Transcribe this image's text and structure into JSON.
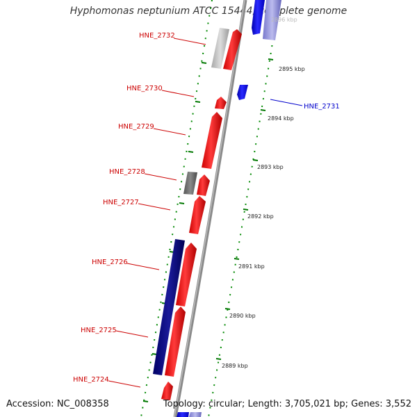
{
  "title": "Hyphomonas neptunium ATCC 15444, complete genome",
  "footer": {
    "accession": "Accession: NC_008358",
    "topology": "Topology: circular; Length: 3,705,021 bp; Genes: 3,552"
  },
  "colors": {
    "forward_gene": "#ff0000",
    "reverse_gene": "#0000ee",
    "label_red": "#cc0000",
    "label_blue": "#0000cc",
    "backbone": "#888888",
    "tick_green": "#007700",
    "kbp_text": "#222222"
  },
  "scale_labels": [
    {
      "text": "2896 kbp"
    },
    {
      "text": "2895 kbp"
    },
    {
      "text": "2894 kbp"
    },
    {
      "text": "2893 kbp"
    },
    {
      "text": "2892 kbp"
    },
    {
      "text": "2891 kbp"
    },
    {
      "text": "2890 kbp"
    },
    {
      "text": "2889 kbp"
    }
  ],
  "gene_labels": [
    {
      "text": "HNE_2732",
      "color": "#cc0000"
    },
    {
      "text": "HNE_2731",
      "color": "#0000cc"
    },
    {
      "text": "HNE_2730",
      "color": "#cc0000"
    },
    {
      "text": "HNE_2729",
      "color": "#cc0000"
    },
    {
      "text": "HNE_2728",
      "color": "#cc0000"
    },
    {
      "text": "HNE_2727",
      "color": "#cc0000"
    },
    {
      "text": "HNE_2726",
      "color": "#cc0000"
    },
    {
      "text": "HNE_2725",
      "color": "#cc0000"
    },
    {
      "text": "HNE_2724",
      "color": "#cc0000"
    }
  ]
}
